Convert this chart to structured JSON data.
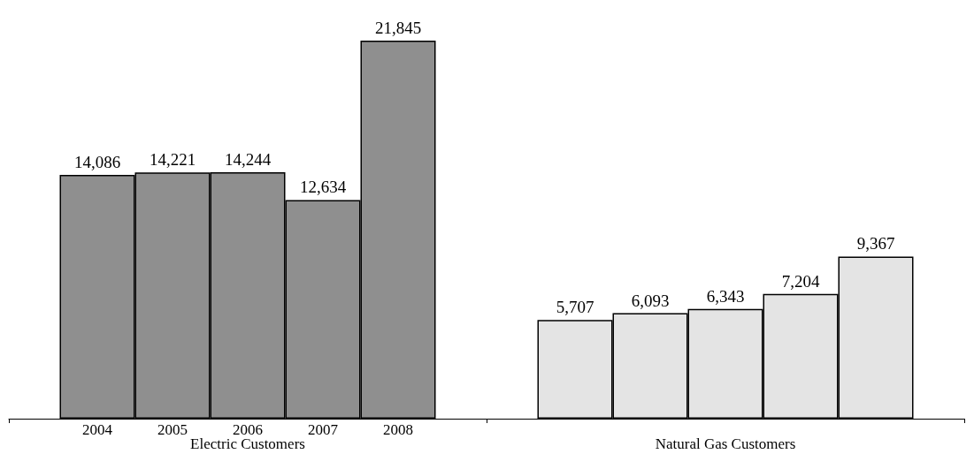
{
  "chart_data": {
    "type": "bar",
    "categories": [
      "Electric Customers",
      "Natural Gas Customers"
    ],
    "series": [
      {
        "name": "2004",
        "colors": [
          "#8f8f8f",
          "#e4e4e4"
        ],
        "values": [
          14086,
          5707
        ],
        "value_labels": [
          "14,086",
          "5,707"
        ]
      },
      {
        "name": "2005",
        "colors": [
          "#8f8f8f",
          "#e4e4e4"
        ],
        "values": [
          14221,
          6093
        ],
        "value_labels": [
          "14,221",
          "6,093"
        ]
      },
      {
        "name": "2006",
        "colors": [
          "#8f8f8f",
          "#e4e4e4"
        ],
        "values": [
          14244,
          6343
        ],
        "value_labels": [
          "14,244",
          "6,343"
        ]
      },
      {
        "name": "2007",
        "colors": [
          "#8f8f8f",
          "#e4e4e4"
        ],
        "values": [
          12634,
          7204
        ],
        "value_labels": [
          "12,634",
          "7,204"
        ]
      },
      {
        "name": "2008",
        "colors": [
          "#8f8f8f",
          "#e4e4e4"
        ],
        "values": [
          21845,
          9367
        ],
        "value_labels": [
          "21,845",
          "9,367"
        ]
      }
    ],
    "grid": false,
    "legend": false
  }
}
